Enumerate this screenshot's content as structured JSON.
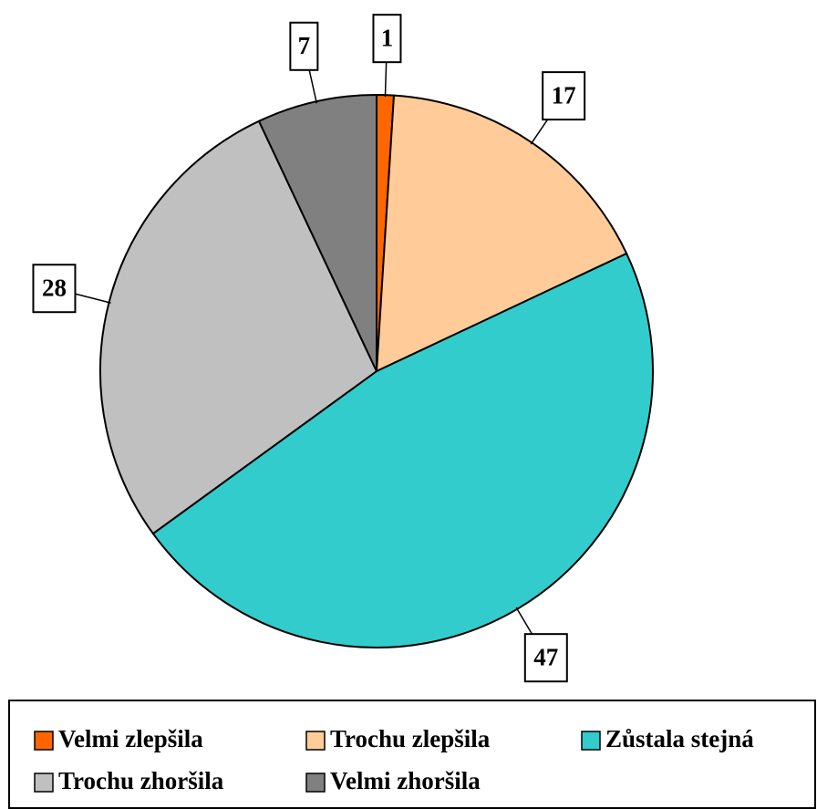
{
  "chart_data": {
    "type": "pie",
    "categories": [
      "Velmi zlepšila",
      "Trochu zlepšila",
      "Zůstala stejná",
      "Trochu zhoršila",
      "Velmi zhoršila"
    ],
    "values": [
      1,
      17,
      47,
      28,
      7
    ],
    "colors": [
      "#ff6600",
      "#ffcc99",
      "#33cccc",
      "#c0c0c0",
      "#808080"
    ],
    "legend": "bottom"
  }
}
